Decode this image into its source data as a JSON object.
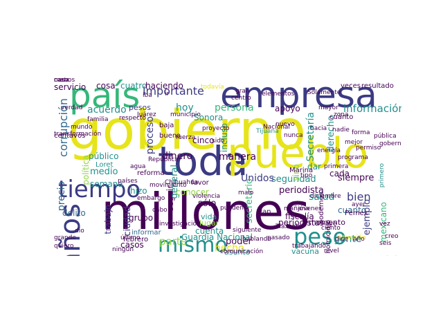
{
  "colors": {
    "dark": "#440154",
    "indigo": "#3b3a83",
    "blue": "#31688e",
    "teal": "#21908c",
    "green": "#35b779",
    "lime": "#90d743",
    "yellow": "#e6e41a"
  },
  "words": [
    {
      "text": "gobierno",
      "c": "yellow"
    },
    {
      "text": "millones",
      "c": "dark"
    },
    {
      "text": "empresa",
      "c": "indigo"
    },
    {
      "text": "toda",
      "c": "indigo"
    },
    {
      "text": "pueblo",
      "c": "yellow"
    },
    {
      "text": "país",
      "c": "green"
    },
    {
      "text": "tiempo",
      "c": "indigo"
    },
    {
      "text": "mismo",
      "c": "teal"
    },
    {
      "text": "peso",
      "c": "teal"
    },
    {
      "text": "años",
      "c": "indigo"
    },
    {
      "text": "importante",
      "c": "indigo"
    },
    {
      "text": "información",
      "c": "teal"
    },
    {
      "text": "manera",
      "c": "dark"
    },
    {
      "text": "seguridad",
      "c": "teal"
    },
    {
      "text": "periodista",
      "c": "dark"
    },
    {
      "text": "siempre",
      "c": "dark"
    },
    {
      "text": "salud",
      "c": "teal"
    },
    {
      "text": "bien",
      "c": "indigo"
    },
    {
      "text": "gente",
      "c": "teal"
    },
    {
      "text": "dinero",
      "c": "dark"
    },
    {
      "text": "Unidos",
      "c": "indigo"
    },
    {
      "text": "parte",
      "c": "lime"
    },
    {
      "text": "corrupción",
      "c": "blue"
    },
    {
      "text": "precio",
      "c": "blue"
    },
    {
      "text": "persona",
      "c": "green"
    },
    {
      "text": "poder",
      "c": "dark"
    },
    {
      "text": "hecho",
      "c": "yellow"
    },
    {
      "text": "vacuna",
      "c": "teal"
    },
    {
      "text": "momento",
      "c": "dark"
    },
    {
      "text": "cuanto",
      "c": "blue"
    },
    {
      "text": "ejemplo",
      "c": "indigo"
    },
    {
      "text": "hoy",
      "c": "teal"
    },
    {
      "text": "acuerdo",
      "c": "teal"
    },
    {
      "text": "pesos",
      "c": "indigo"
    },
    {
      "text": "proceso",
      "c": "indigo"
    },
    {
      "text": "medio",
      "c": "teal"
    },
    {
      "text": "semana",
      "c": "teal"
    },
    {
      "text": "hizo",
      "c": "teal"
    },
    {
      "text": "sólo",
      "c": "dark"
    },
    {
      "text": "vida",
      "c": "teal"
    },
    {
      "text": "lugar",
      "c": "lime"
    },
    {
      "text": "cuenta",
      "c": "teal"
    },
    {
      "text": "grupo",
      "c": "dark"
    },
    {
      "text": "casos",
      "c": "dark"
    },
    {
      "text": "asunto",
      "c": "teal"
    },
    {
      "text": "ciudad",
      "c": "indigo"
    },
    {
      "text": "trabajo",
      "c": "indigo"
    },
    {
      "text": "servicio",
      "c": "dark"
    },
    {
      "text": "cosa",
      "c": "dark"
    },
    {
      "text": "cuatro",
      "c": "teal"
    },
    {
      "text": "haciendo",
      "c": "dark"
    },
    {
      "text": "apoyo",
      "c": "dark"
    },
    {
      "text": "Secretaría",
      "c": "teal"
    },
    {
      "text": "derecho",
      "c": "teal"
    },
    {
      "text": "cada",
      "c": "dark"
    },
    {
      "text": "dar",
      "c": "teal"
    },
    {
      "text": "sino",
      "c": "lime"
    },
    {
      "text": "seguir",
      "c": "dark"
    },
    {
      "text": "general",
      "c": "teal"
    },
    {
      "text": "secretario",
      "c": "green"
    },
    {
      "text": "público",
      "c": "teal"
    },
    {
      "text": "política",
      "c": "lime"
    },
    {
      "text": "cinco",
      "c": "dark"
    },
    {
      "text": "incluso",
      "c": "teal"
    },
    {
      "text": "Sonora",
      "c": "teal"
    },
    {
      "text": "conocer",
      "c": "lime"
    },
    {
      "text": "delito",
      "c": "blue"
    },
    {
      "text": "mexicano",
      "c": "green"
    },
    {
      "text": "Guardia Nacional",
      "c": "teal"
    },
    {
      "text": "periodistas",
      "c": "dark"
    },
    {
      "text": "fiscalía",
      "c": "dark"
    },
    {
      "text": "podemos",
      "c": "dark"
    },
    {
      "text": "homicidio",
      "c": "dark"
    },
    {
      "text": "plan",
      "c": "dark"
    },
    {
      "text": "informar",
      "c": "blue"
    },
    {
      "text": "febrero",
      "c": "dark"
    },
    {
      "text": "todavía",
      "c": "yellow"
    },
    {
      "text": "resultado",
      "c": "dark"
    },
    {
      "text": "veces",
      "c": "dark"
    },
    {
      "text": "Pemex",
      "c": "dark"
    },
    {
      "text": "transformación",
      "c": "dark"
    },
    {
      "text": "centavos",
      "c": "dark"
    },
    {
      "text": "mundo",
      "c": "dark"
    },
    {
      "text": "baja",
      "c": "dark"
    },
    {
      "text": "buena",
      "c": "dark"
    },
    {
      "text": "proyecto",
      "c": "dark"
    },
    {
      "text": "zona",
      "c": "dark"
    },
    {
      "text": "mayor",
      "c": "dark"
    },
    {
      "text": "primero",
      "c": "teal"
    },
    {
      "text": "Marina",
      "c": "dark"
    },
    {
      "text": "trabajando",
      "c": "dark"
    },
    {
      "text": "siguiente",
      "c": "dark"
    },
    {
      "text": "contrato",
      "c": "dark"
    },
    {
      "text": "Loret",
      "c": "teal"
    },
    {
      "text": "reforma",
      "c": "dark"
    },
    {
      "text": "municipio",
      "c": "dark"
    },
    {
      "text": "fuerza",
      "c": "dark"
    },
    {
      "text": "cuánto",
      "c": "dark"
    },
    {
      "text": "favor",
      "c": "dark"
    },
    {
      "text": "verdad",
      "c": "dark"
    },
    {
      "text": "último",
      "c": "dark"
    },
    {
      "text": "quiero",
      "c": "dark"
    },
    {
      "text": "pasado",
      "c": "dark"
    },
    {
      "text": "investigación",
      "c": "dark"
    },
    {
      "text": "cabo",
      "c": "dark"
    },
    {
      "text": "pueden",
      "c": "dark"
    },
    {
      "text": "Tijuana",
      "c": "teal"
    },
    {
      "text": "Juárez",
      "c": "dark"
    },
    {
      "text": "familia",
      "c": "dark"
    },
    {
      "text": "respecto",
      "c": "dark"
    },
    {
      "text": "Nacional",
      "c": "dark"
    },
    {
      "text": "energía",
      "c": "dark"
    },
    {
      "text": "programa",
      "c": "dark"
    },
    {
      "text": "mejor",
      "c": "dark"
    },
    {
      "text": "nadie",
      "c": "dark"
    },
    {
      "text": "hacia",
      "c": "dark"
    },
    {
      "text": "nuevo",
      "c": "dark"
    },
    {
      "text": "gran",
      "c": "dark"
    },
    {
      "text": "ir",
      "c": "dark"
    },
    {
      "text": "situación",
      "c": "yellow"
    },
    {
      "text": "movimiento",
      "c": "dark"
    },
    {
      "text": "tipo",
      "c": "dark"
    },
    {
      "text": "nunca",
      "c": "dark"
    },
    {
      "text": "República",
      "c": "dark"
    },
    {
      "text": "agua",
      "c": "dark"
    },
    {
      "text": "ningún",
      "c": "dark"
    },
    {
      "text": "centro",
      "c": "dark"
    },
    {
      "text": "elementos",
      "c": "dark"
    },
    {
      "text": "Solamente",
      "c": "dark"
    },
    {
      "text": "permiso",
      "c": "dark"
    },
    {
      "text": "forma",
      "c": "dark"
    },
    {
      "text": "pública",
      "c": "dark"
    },
    {
      "text": "grande",
      "c": "dark"
    },
    {
      "text": "violencia",
      "c": "dark"
    },
    {
      "text": "Chihuahua",
      "c": "dark"
    },
    {
      "text": "embargo",
      "c": "dark"
    },
    {
      "text": "mañana",
      "c": "dark"
    },
    {
      "text": "Tlaxcala",
      "c": "dark"
    },
    {
      "text": "hablando",
      "c": "dark"
    },
    {
      "text": "comunicación",
      "c": "dark"
    },
    {
      "text": "nivel",
      "c": "dark"
    },
    {
      "text": "diciembre",
      "c": "dark"
    },
    {
      "text": "primera",
      "c": "dark"
    },
    {
      "text": "vez",
      "c": "dark"
    },
    {
      "text": "oye",
      "c": "dark"
    },
    {
      "text": "dio",
      "c": "dark"
    },
    {
      "text": "iba",
      "c": "dark"
    },
    {
      "text": "malo",
      "c": "dark"
    },
    {
      "text": "dice",
      "c": "dark"
    },
    {
      "text": "sido",
      "c": "dark"
    },
    {
      "text": "gobernador",
      "c": "dark"
    },
    {
      "text": "ayer",
      "c": "dark"
    },
    {
      "text": "jóvenes",
      "c": "dark"
    },
    {
      "text": "países",
      "c": "dark"
    },
    {
      "text": "ciento",
      "c": "dark"
    },
    {
      "text": "creo",
      "c": "dark"
    },
    {
      "text": "año",
      "c": "dark"
    },
    {
      "text": "seis",
      "c": "dark"
    },
    {
      "text": "menos",
      "c": "dark"
    },
    {
      "text": "caso",
      "c": "dark"
    },
    {
      "text": "nada",
      "c": "dark"
    }
  ]
}
